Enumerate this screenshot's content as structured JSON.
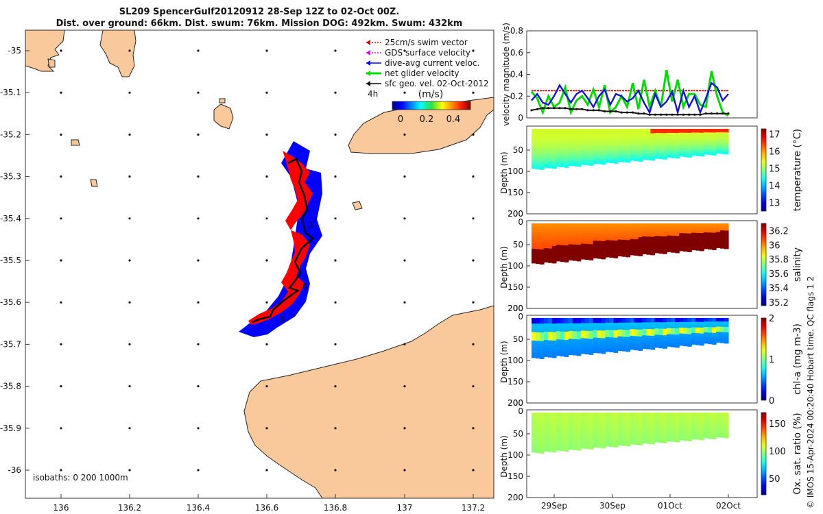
{
  "header": {
    "title_line1": "SL209 SpencerGulf20120912 28-Sep 12Z to 02-Oct 00Z.",
    "title_line2": "Dist. over ground: 66km. Dist. swum: 76km. Mission DOG: 492km. Swum: 432km"
  },
  "stamp": "© IMOS 15-Apr-2024 00:20:40 Hobart time. QC flags 1  2",
  "map": {
    "legend": [
      "25cm/s swim vector",
      "GDS surface velocity",
      "dive-avg current veloc.",
      "net glider velocity",
      "sfc geo. vel. 02-Oct-2012"
    ],
    "legend_colors": [
      "#e00000",
      "#e000e0",
      "#0000ff",
      "#00e000",
      "#000000"
    ],
    "time_label": "4h",
    "colorbar_unit": "(m/s)",
    "colorbar_ticks": [
      "0",
      "0.2",
      "0.4"
    ],
    "isobaths": "isobaths: 0   200  1000m",
    "xticks": [
      "136",
      "136.2",
      "136.4",
      "136.6",
      "136.8",
      "137",
      "137.2"
    ],
    "yticks": [
      "-35",
      "-35.1",
      "-35.2",
      "-35.3",
      "-35.4",
      "-35.5",
      "-35.6",
      "-35.7",
      "-35.8",
      "-35.9",
      "-36"
    ],
    "track_labels": [
      "1",
      "0",
      "3"
    ],
    "land_color": "#f9c89b",
    "track_color": "#0000ff",
    "vector_color": "#ff0000"
  },
  "chart_data": [
    {
      "type": "line",
      "title": "",
      "ylabel": "velocity magnitude (m/s)",
      "ylim": [
        0,
        0.8
      ],
      "yticks": [
        "0",
        "0.2",
        "0.4",
        "0.6",
        "0.8"
      ],
      "x_days": [
        0,
        0.1,
        0.2,
        0.3,
        0.4,
        0.5,
        0.6,
        0.7,
        0.8,
        0.9,
        1.0,
        1.1,
        1.2,
        1.3,
        1.4,
        1.5,
        1.6,
        1.7,
        1.8,
        1.9,
        2.0,
        2.1,
        2.2,
        2.3,
        2.4,
        2.5,
        2.6,
        2.7,
        2.8,
        2.9,
        3.0,
        3.1,
        3.2,
        3.3,
        3.4,
        3.5
      ],
      "series": [
        {
          "name": "25cm/s swim vector",
          "color": "#ff0000",
          "values": [
            0.25,
            0.25,
            0.25,
            0.25,
            0.25,
            0.25,
            0.25,
            0.25,
            0.25,
            0.25,
            0.25,
            0.25,
            0.25,
            0.25,
            0.25,
            0.25,
            0.25,
            0.25,
            0.25,
            0.25,
            0.25,
            0.25,
            0.25,
            0.25,
            0.25,
            0.25,
            0.25,
            0.25,
            0.25,
            0.25,
            0.25,
            0.25,
            0.25,
            0.25,
            0.25,
            0.25
          ]
        },
        {
          "name": "net glider velocity",
          "color": "#00dd00",
          "values": [
            0.24,
            0.18,
            0.05,
            0.2,
            0.1,
            0.14,
            0.28,
            0.05,
            0.16,
            0.2,
            0.12,
            0.26,
            0.1,
            0.3,
            0.05,
            0.1,
            0.2,
            0.1,
            0.32,
            0.08,
            0.35,
            0.1,
            0.25,
            0.1,
            0.44,
            0.15,
            0.35,
            0.1,
            0.22,
            0.22,
            0.12,
            0.1,
            0.43,
            0.2,
            0.05,
            0.02
          ]
        },
        {
          "name": "dive-avg current veloc.",
          "color": "#1010e0",
          "values": [
            0.16,
            0.22,
            0.14,
            0.12,
            0.2,
            0.3,
            0.22,
            0.14,
            0.22,
            0.25,
            0.18,
            0.1,
            0.2,
            0.26,
            0.12,
            0.22,
            0.2,
            0.15,
            0.18,
            0.25,
            0.14,
            0.05,
            0.22,
            0.1,
            0.15,
            0.24,
            0.05,
            0.25,
            0.1,
            0.2,
            0.05,
            0.18,
            0.32,
            0.28,
            0.16,
            0.22
          ]
        },
        {
          "name": "sfc geo. vel. 02-Oct-2012",
          "color": "#111111",
          "values": [
            0.07,
            0.08,
            0.09,
            0.09,
            0.09,
            0.09,
            0.09,
            0.08,
            0.08,
            0.08,
            0.07,
            0.07,
            0.07,
            0.06,
            0.06,
            0.06,
            0.05,
            0.05,
            0.05,
            0.04,
            0.04,
            0.03,
            0.03,
            0.03,
            0.03,
            0.03,
            0.03,
            0.03,
            0.03,
            0.03,
            0.03,
            0.04,
            0.04,
            0.04,
            0.04,
            0.04
          ]
        }
      ]
    },
    {
      "type": "heatmap",
      "variable": "temperature",
      "colorbar_label": "temperature (°C)",
      "colorbar_ticks": [
        "13",
        "14",
        "15",
        "16",
        "17"
      ],
      "clim": [
        12.5,
        17.3
      ],
      "ylabel": "Depth (m)",
      "yticks": [
        "50",
        "100",
        "150",
        "200"
      ],
      "top_tick": "",
      "surface_value": 15.3,
      "bottom_value": 14.4,
      "feature_value": 16.5
    },
    {
      "type": "heatmap",
      "variable": "salinity",
      "colorbar_label": "salinity",
      "colorbar_ticks": [
        "35.2",
        "35.4",
        "35.6",
        "35.8",
        "36",
        "36.2"
      ],
      "clim": [
        35.15,
        36.3
      ],
      "ylabel": "Depth (m)",
      "yticks": [
        "50",
        "100",
        "150",
        "200"
      ],
      "top_tick": "0",
      "top_tick_above": "200",
      "surface_value": 36.0,
      "bottom_value": 36.3,
      "feature_value": 36.05
    },
    {
      "type": "heatmap",
      "variable": "chl-a",
      "colorbar_label": "chl-a (mg m-3)",
      "colorbar_ticks": [
        "0",
        "1",
        "2"
      ],
      "clim": [
        0,
        2
      ],
      "ylabel": "Depth (m)",
      "yticks": [
        "50",
        "100",
        "150",
        "200"
      ],
      "top_tick": "0",
      "top_tick_above": "200",
      "surface_value": 0.55,
      "bottom_value": 0.65,
      "feature_value": 1.25
    },
    {
      "type": "heatmap",
      "variable": "oxygen",
      "colorbar_label": "Ox. sat. ratio (%)",
      "colorbar_ticks": [
        "50",
        "100",
        "150"
      ],
      "clim": [
        20,
        170
      ],
      "ylabel": "Depth (m)",
      "yticks": [
        "50",
        "100",
        "150",
        "200"
      ],
      "top_tick": "0",
      "top_tick_above": "200",
      "surface_value": 103,
      "bottom_value": 100,
      "feature_value": 105,
      "xticks": [
        "29Sep",
        "30Sep",
        "01Oct",
        "02Oct"
      ]
    }
  ]
}
